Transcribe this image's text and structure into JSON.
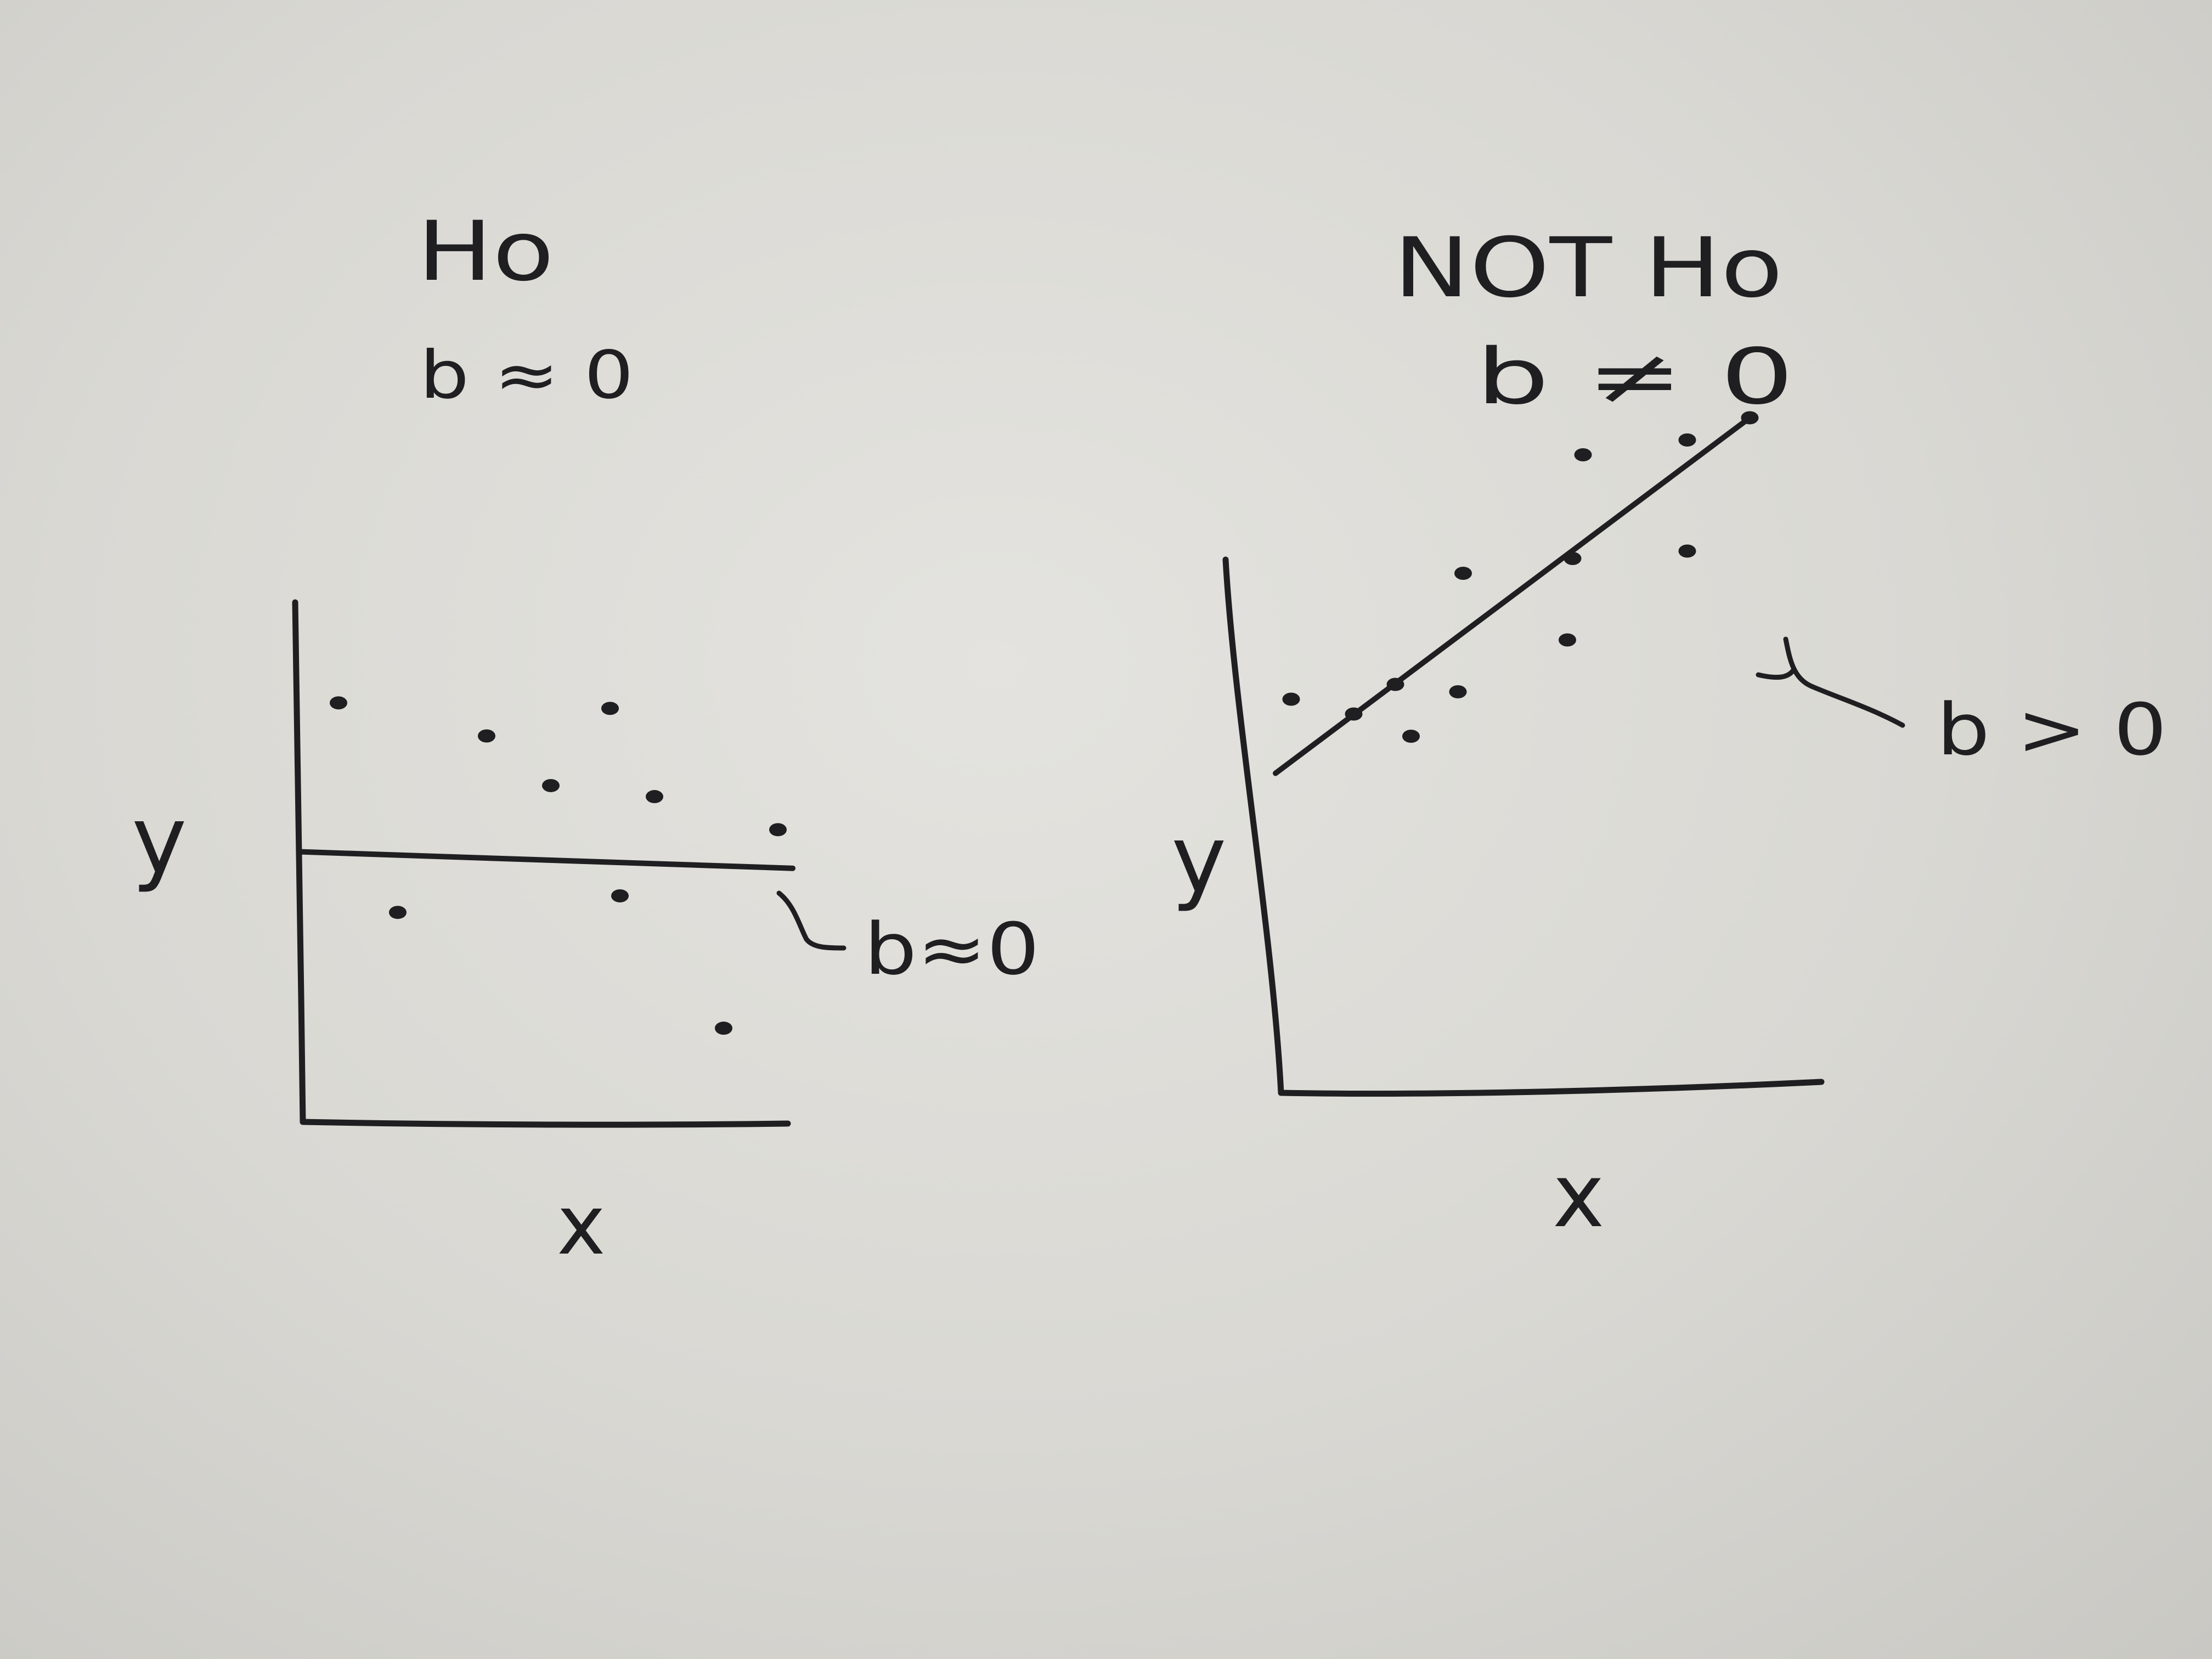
{
  "chart_data": [
    {
      "type": "scatter",
      "title": "Ho",
      "subtitle": "b ≈ 0",
      "xlabel": "x",
      "ylabel": "y",
      "xlim": [
        0,
        10
      ],
      "ylim": [
        0,
        10
      ],
      "points": [
        {
          "x": 0.8,
          "y": 7.6
        },
        {
          "x": 3.8,
          "y": 7.0
        },
        {
          "x": 6.3,
          "y": 7.5
        },
        {
          "x": 5.1,
          "y": 6.1
        },
        {
          "x": 7.2,
          "y": 5.9
        },
        {
          "x": 9.7,
          "y": 5.3
        },
        {
          "x": 2.0,
          "y": 3.8
        },
        {
          "x": 6.5,
          "y": 4.1
        },
        {
          "x": 8.6,
          "y": 1.7
        }
      ],
      "fit_line": {
        "x": [
          0,
          10
        ],
        "y": [
          4.9,
          4.6
        ]
      },
      "annotation": "b≈0",
      "ink_color": "#1f1f22",
      "paper_color": "#dedddA"
    },
    {
      "type": "scatter",
      "title": "NOT Ho",
      "subtitle": "b ≠ 0",
      "xlabel": "x",
      "ylabel": "y",
      "xlim": [
        0,
        10
      ],
      "ylim": [
        0,
        10
      ],
      "points": [
        {
          "x": 0.3,
          "y": 5.3
        },
        {
          "x": 1.5,
          "y": 5.1
        },
        {
          "x": 2.3,
          "y": 5.5
        },
        {
          "x": 2.6,
          "y": 4.8
        },
        {
          "x": 3.5,
          "y": 5.4
        },
        {
          "x": 3.6,
          "y": 7.0
        },
        {
          "x": 5.6,
          "y": 6.1
        },
        {
          "x": 5.7,
          "y": 7.2
        },
        {
          "x": 5.9,
          "y": 8.6
        },
        {
          "x": 7.9,
          "y": 7.3
        },
        {
          "x": 7.9,
          "y": 8.8
        },
        {
          "x": 9.1,
          "y": 9.1
        }
      ],
      "fit_line": {
        "x": [
          0,
          9.1
        ],
        "y": [
          4.3,
          9.1
        ]
      },
      "annotation": "b > 0",
      "ink_color": "#1f1f22"
    }
  ]
}
